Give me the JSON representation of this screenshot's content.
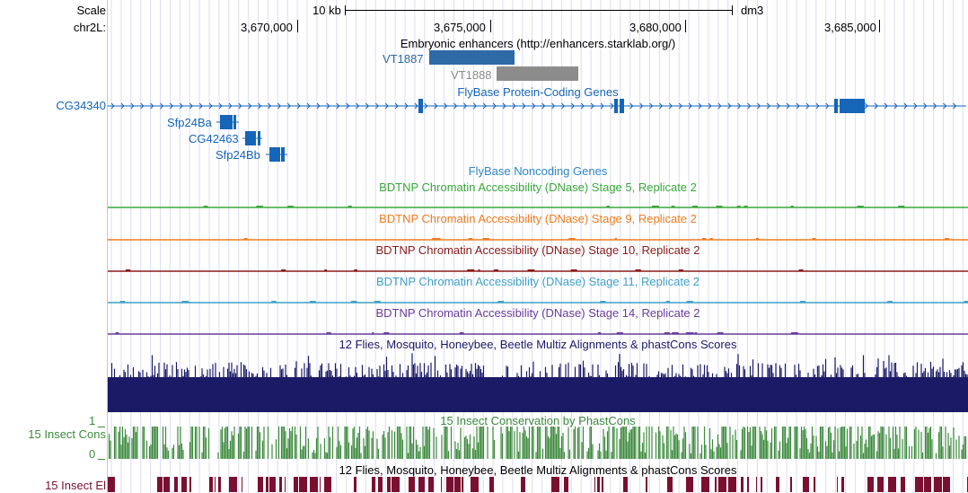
{
  "scale": {
    "label": "Scale",
    "bar_text": "10 kb",
    "assembly": "dm3"
  },
  "ruler": {
    "label": "chr2L:",
    "ticks": [
      "3,670,000",
      "3,675,000",
      "3,680,000",
      "3,685,000"
    ]
  },
  "enhancers": {
    "title": "Embryonic enhancers (http://enhancers.starklab.org/)",
    "items": [
      {
        "name": "VT1887",
        "color": "#2e6aa6"
      },
      {
        "name": "VT1888",
        "color": "#8c8c8c"
      }
    ]
  },
  "genes": {
    "title": "FlyBase Protein-Coding Genes",
    "color": "#1565b8",
    "items": [
      "CG34340",
      "Sfp24Ba",
      "CG42463",
      "Sfp24Bb"
    ]
  },
  "noncoding": {
    "title": "FlyBase Noncoding Genes",
    "color": "#2e86c9"
  },
  "dnase_tracks": [
    {
      "title": "BDTNP Chromatin Accessibility (DNase) Stage 5, Replicate 2",
      "color": "#3aa83a"
    },
    {
      "title": "BDTNP Chromatin Accessibility (DNase) Stage 9, Replicate 2",
      "color": "#f07c1e"
    },
    {
      "title": "BDTNP Chromatin Accessibility (DNase) Stage 10, Replicate 2",
      "color": "#8b1a1a"
    },
    {
      "title": "BDTNP Chromatin Accessibility (DNase) Stage 11, Replicate 2",
      "color": "#3fa0c8"
    },
    {
      "title": "BDTNP Chromatin Accessibility (DNase) Stage 14, Replicate 2",
      "color": "#6a3c9c"
    }
  ],
  "multiz": {
    "title": "12 Flies, Mosquito, Honeybee, Beetle Multiz Alignments & phastCons Scores",
    "color": "#1a1a66"
  },
  "phastcons": {
    "label": "15 Insect Cons",
    "title": "15 Insect Conservation by PhastCons",
    "axis_max": "1",
    "axis_min": "0",
    "color": "#3c8a3c"
  },
  "elements": {
    "label": "15 Insect El",
    "title": "12 Flies, Mosquito, Honeybee, Beetle Multiz Alignments & phastCons Scores",
    "color": "#7a1030"
  }
}
